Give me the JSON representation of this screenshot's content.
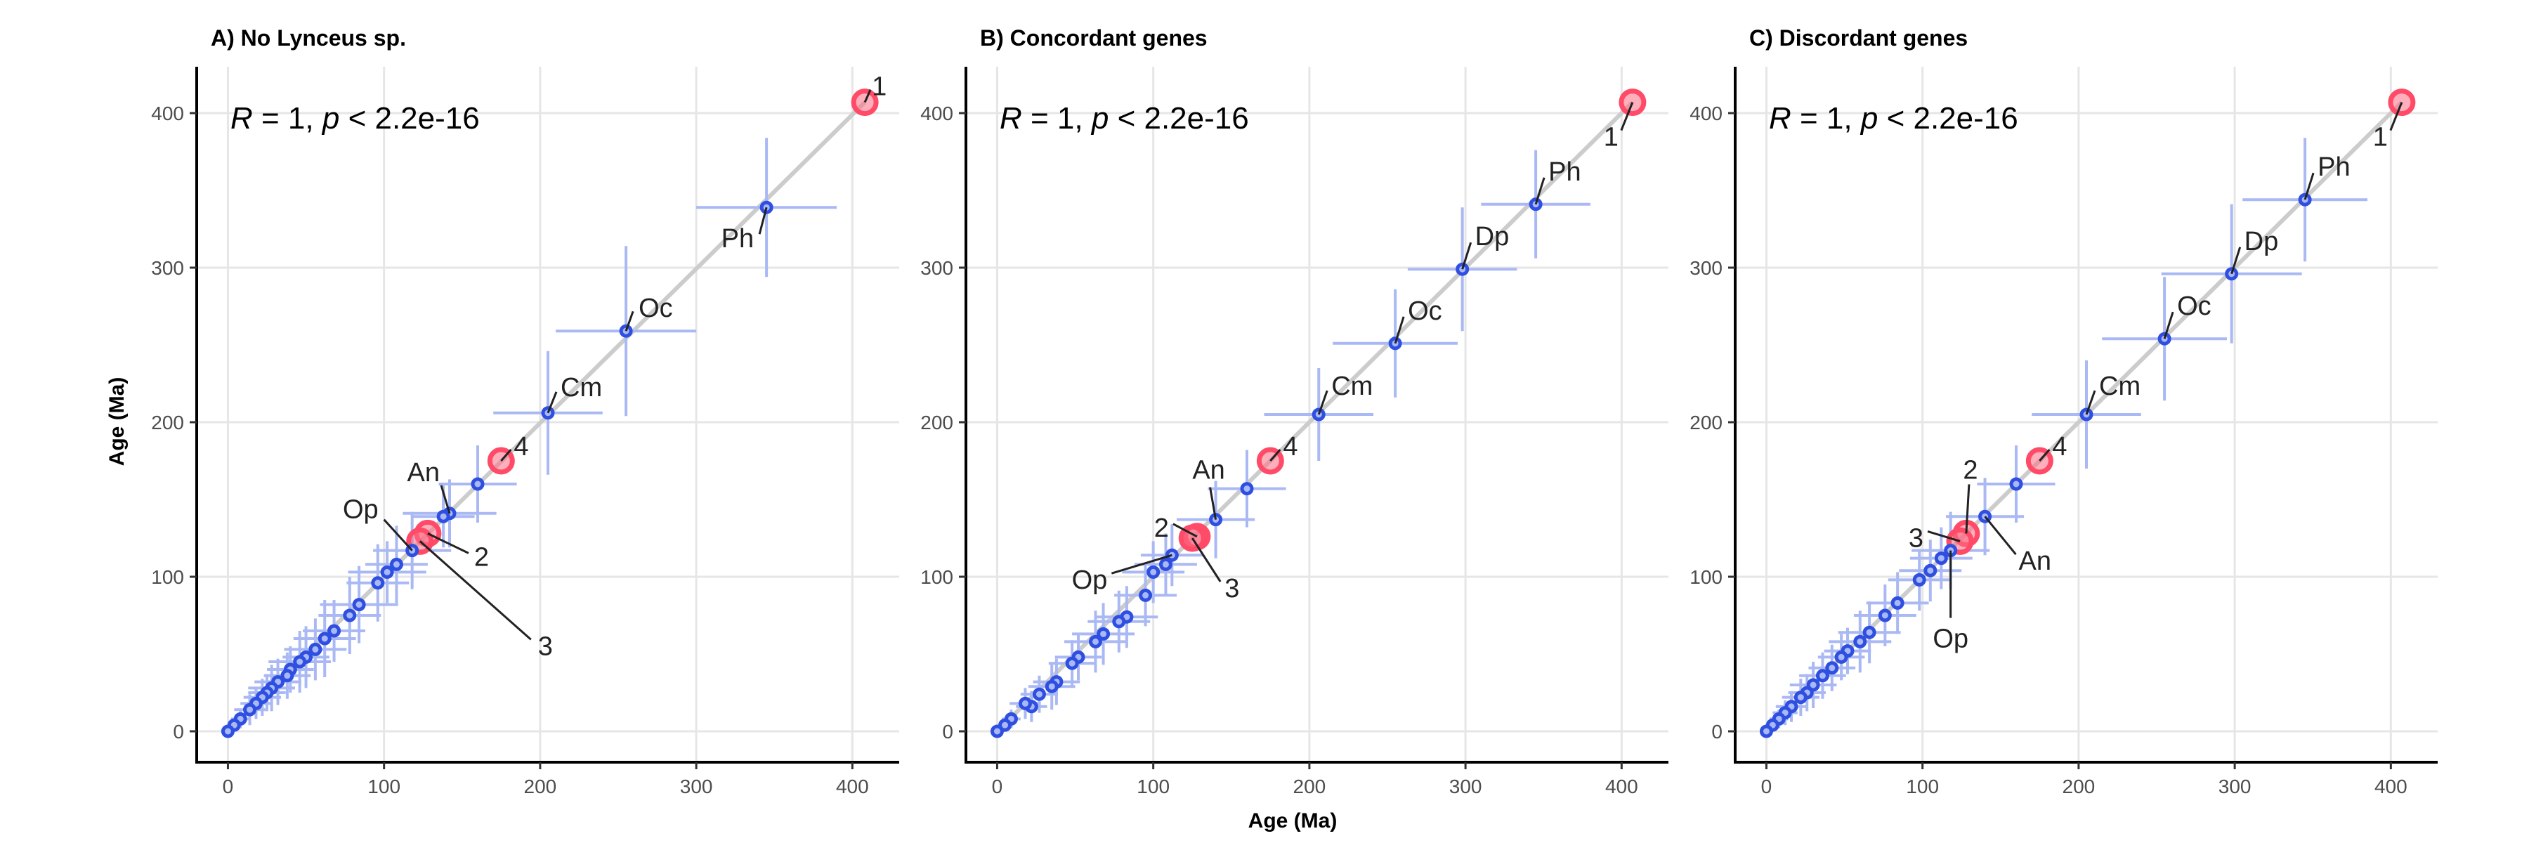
{
  "x_axis_title": "Age (Ma)",
  "y_axis_title": "Age (Ma)",
  "colors": {
    "points_stroke": "#2f4fe0",
    "points_fill": "#a9b8f6",
    "error_bars": "#aab9f4",
    "highlight": "#ff4a68",
    "identity_line": "#cccccc",
    "grid": "#e6e6e6"
  },
  "chart_data": [
    {
      "type": "scatter",
      "title": "A) No Lynceus sp.",
      "stat": {
        "R": "R",
        "R_value": "1",
        "p": "p",
        "p_value": "< 2.2e-16"
      },
      "xlim": [
        -20,
        430
      ],
      "ylim": [
        -20,
        430
      ],
      "xticks": [
        0,
        100,
        200,
        300,
        400
      ],
      "yticks": [
        0,
        100,
        200,
        300,
        400
      ],
      "identity_line": true,
      "grid": true,
      "points": [
        {
          "x": 408,
          "y": 407,
          "xerr": 0,
          "yerr": 0,
          "highlight": true,
          "label": "1"
        },
        {
          "x": 345,
          "y": 339,
          "xerr": 45,
          "yerr": 45,
          "label": "Ph"
        },
        {
          "x": 255,
          "y": 259,
          "xerr": 45,
          "yerr": 55,
          "label": "Oc"
        },
        {
          "x": 205,
          "y": 206,
          "xerr": 35,
          "yerr": 40,
          "label": "Cm"
        },
        {
          "x": 175,
          "y": 175,
          "xerr": 0,
          "yerr": 0,
          "highlight": true,
          "label": "4"
        },
        {
          "x": 160,
          "y": 160,
          "xerr": 25,
          "yerr": 25
        },
        {
          "x": 142,
          "y": 141,
          "xerr": 30,
          "yerr": 22,
          "label": "An"
        },
        {
          "x": 138,
          "y": 139,
          "xerr": 20,
          "yerr": 20
        },
        {
          "x": 128,
          "y": 128,
          "xerr": 0,
          "yerr": 0,
          "highlight": true,
          "label": "2"
        },
        {
          "x": 123,
          "y": 123,
          "xerr": 0,
          "yerr": 0,
          "highlight": true,
          "label": "3"
        },
        {
          "x": 118,
          "y": 117,
          "xerr": 25,
          "yerr": 25,
          "label": "Op"
        },
        {
          "x": 108,
          "y": 108,
          "xerr": 20,
          "yerr": 25
        },
        {
          "x": 102,
          "y": 103,
          "xerr": 25,
          "yerr": 20
        },
        {
          "x": 96,
          "y": 96,
          "xerr": 20,
          "yerr": 25
        },
        {
          "x": 84,
          "y": 82,
          "xerr": 25,
          "yerr": 25
        },
        {
          "x": 78,
          "y": 75,
          "xerr": 20,
          "yerr": 25
        },
        {
          "x": 68,
          "y": 65,
          "xerr": 20,
          "yerr": 20
        },
        {
          "x": 62,
          "y": 60,
          "xerr": 20,
          "yerr": 25
        },
        {
          "x": 56,
          "y": 53,
          "xerr": 20,
          "yerr": 20
        },
        {
          "x": 50,
          "y": 48,
          "xerr": 15,
          "yerr": 20
        },
        {
          "x": 46,
          "y": 45,
          "xerr": 20,
          "yerr": 20
        },
        {
          "x": 40,
          "y": 40,
          "xerr": 15,
          "yerr": 15
        },
        {
          "x": 38,
          "y": 36,
          "xerr": 15,
          "yerr": 15
        },
        {
          "x": 32,
          "y": 32,
          "xerr": 15,
          "yerr": 15
        },
        {
          "x": 28,
          "y": 28,
          "xerr": 15,
          "yerr": 15
        },
        {
          "x": 25,
          "y": 25,
          "xerr": 12,
          "yerr": 12
        },
        {
          "x": 22,
          "y": 22,
          "xerr": 12,
          "yerr": 12
        },
        {
          "x": 18,
          "y": 18,
          "xerr": 10,
          "yerr": 10
        },
        {
          "x": 14,
          "y": 14,
          "xerr": 10,
          "yerr": 10
        },
        {
          "x": 8,
          "y": 8,
          "xerr": 6,
          "yerr": 6
        },
        {
          "x": 4,
          "y": 4,
          "xerr": 4,
          "yerr": 4
        },
        {
          "x": 0,
          "y": 0,
          "xerr": 0,
          "yerr": 0
        }
      ]
    },
    {
      "type": "scatter",
      "title": "B) Concordant genes",
      "stat": {
        "R": "R",
        "R_value": "1",
        "p": "p",
        "p_value": "< 2.2e-16"
      },
      "xlim": [
        -20,
        430
      ],
      "ylim": [
        -20,
        430
      ],
      "xticks": [
        0,
        100,
        200,
        300,
        400
      ],
      "yticks": [
        0,
        100,
        200,
        300,
        400
      ],
      "identity_line": true,
      "grid": true,
      "points": [
        {
          "x": 407,
          "y": 407,
          "xerr": 0,
          "yerr": 0,
          "highlight": true,
          "label": "1"
        },
        {
          "x": 345,
          "y": 341,
          "xerr": 35,
          "yerr": 35,
          "label": "Ph"
        },
        {
          "x": 298,
          "y": 299,
          "xerr": 35,
          "yerr": 40,
          "label": "Dp"
        },
        {
          "x": 255,
          "y": 251,
          "xerr": 40,
          "yerr": 35,
          "label": "Oc"
        },
        {
          "x": 206,
          "y": 205,
          "xerr": 35,
          "yerr": 30,
          "label": "Cm"
        },
        {
          "x": 175,
          "y": 175,
          "xerr": 0,
          "yerr": 0,
          "highlight": true,
          "label": "4"
        },
        {
          "x": 160,
          "y": 157,
          "xerr": 25,
          "yerr": 25
        },
        {
          "x": 140,
          "y": 137,
          "xerr": 25,
          "yerr": 25,
          "label": "An"
        },
        {
          "x": 128,
          "y": 126,
          "xerr": 0,
          "yerr": 0,
          "highlight": true,
          "label": "2"
        },
        {
          "x": 125,
          "y": 125,
          "xerr": 0,
          "yerr": 0,
          "highlight": true,
          "label": "3"
        },
        {
          "x": 112,
          "y": 114,
          "xerr": 20,
          "yerr": 20,
          "label": "Op"
        },
        {
          "x": 108,
          "y": 108,
          "xerr": 20,
          "yerr": 20
        },
        {
          "x": 100,
          "y": 103,
          "xerr": 20,
          "yerr": 20
        },
        {
          "x": 95,
          "y": 88,
          "xerr": 20,
          "yerr": 20
        },
        {
          "x": 83,
          "y": 74,
          "xerr": 20,
          "yerr": 20
        },
        {
          "x": 78,
          "y": 71,
          "xerr": 20,
          "yerr": 20
        },
        {
          "x": 68,
          "y": 63,
          "xerr": 20,
          "yerr": 20
        },
        {
          "x": 63,
          "y": 58,
          "xerr": 20,
          "yerr": 20
        },
        {
          "x": 52,
          "y": 48,
          "xerr": 15,
          "yerr": 15
        },
        {
          "x": 48,
          "y": 44,
          "xerr": 15,
          "yerr": 15
        },
        {
          "x": 38,
          "y": 32,
          "xerr": 15,
          "yerr": 15
        },
        {
          "x": 35,
          "y": 29,
          "xerr": 15,
          "yerr": 15
        },
        {
          "x": 27,
          "y": 24,
          "xerr": 12,
          "yerr": 12
        },
        {
          "x": 22,
          "y": 16,
          "xerr": 10,
          "yerr": 10
        },
        {
          "x": 18,
          "y": 18,
          "xerr": 10,
          "yerr": 10
        },
        {
          "x": 9,
          "y": 8,
          "xerr": 6,
          "yerr": 6
        },
        {
          "x": 5,
          "y": 4,
          "xerr": 4,
          "yerr": 4
        },
        {
          "x": 0,
          "y": 0,
          "xerr": 0,
          "yerr": 0
        }
      ]
    },
    {
      "type": "scatter",
      "title": "C) Discordant genes",
      "stat": {
        "R": "R",
        "R_value": "1",
        "p": "p",
        "p_value": "< 2.2e-16"
      },
      "xlim": [
        -20,
        430
      ],
      "ylim": [
        -20,
        430
      ],
      "xticks": [
        0,
        100,
        200,
        300,
        400
      ],
      "yticks": [
        0,
        100,
        200,
        300,
        400
      ],
      "identity_line": true,
      "grid": true,
      "points": [
        {
          "x": 407,
          "y": 407,
          "xerr": 0,
          "yerr": 0,
          "highlight": true,
          "label": "1"
        },
        {
          "x": 345,
          "y": 344,
          "xerr": 40,
          "yerr": 40,
          "label": "Ph"
        },
        {
          "x": 298,
          "y": 296,
          "xerr": 45,
          "yerr": 45,
          "label": "Dp"
        },
        {
          "x": 255,
          "y": 254,
          "xerr": 40,
          "yerr": 40,
          "label": "Oc"
        },
        {
          "x": 205,
          "y": 205,
          "xerr": 35,
          "yerr": 35,
          "label": "Cm"
        },
        {
          "x": 175,
          "y": 175,
          "xerr": 0,
          "yerr": 0,
          "highlight": true,
          "label": "4"
        },
        {
          "x": 160,
          "y": 160,
          "xerr": 25,
          "yerr": 25
        },
        {
          "x": 140,
          "y": 139,
          "xerr": 25,
          "yerr": 25,
          "label": "An"
        },
        {
          "x": 128,
          "y": 128,
          "xerr": 0,
          "yerr": 0,
          "highlight": true,
          "label": "2"
        },
        {
          "x": 124,
          "y": 123,
          "xerr": 0,
          "yerr": 0,
          "highlight": true,
          "label": "3"
        },
        {
          "x": 118,
          "y": 117,
          "xerr": 25,
          "yerr": 25,
          "label": "Op"
        },
        {
          "x": 112,
          "y": 112,
          "xerr": 20,
          "yerr": 20
        },
        {
          "x": 105,
          "y": 104,
          "xerr": 20,
          "yerr": 20
        },
        {
          "x": 98,
          "y": 98,
          "xerr": 20,
          "yerr": 20
        },
        {
          "x": 84,
          "y": 83,
          "xerr": 20,
          "yerr": 20
        },
        {
          "x": 76,
          "y": 75,
          "xerr": 20,
          "yerr": 20
        },
        {
          "x": 66,
          "y": 64,
          "xerr": 20,
          "yerr": 20
        },
        {
          "x": 60,
          "y": 58,
          "xerr": 20,
          "yerr": 20
        },
        {
          "x": 52,
          "y": 52,
          "xerr": 15,
          "yerr": 15
        },
        {
          "x": 48,
          "y": 48,
          "xerr": 15,
          "yerr": 15
        },
        {
          "x": 42,
          "y": 41,
          "xerr": 15,
          "yerr": 15
        },
        {
          "x": 36,
          "y": 36,
          "xerr": 15,
          "yerr": 15
        },
        {
          "x": 30,
          "y": 30,
          "xerr": 15,
          "yerr": 15
        },
        {
          "x": 26,
          "y": 25,
          "xerr": 12,
          "yerr": 12
        },
        {
          "x": 22,
          "y": 22,
          "xerr": 12,
          "yerr": 12
        },
        {
          "x": 16,
          "y": 16,
          "xerr": 10,
          "yerr": 10
        },
        {
          "x": 12,
          "y": 12,
          "xerr": 8,
          "yerr": 8
        },
        {
          "x": 8,
          "y": 8,
          "xerr": 6,
          "yerr": 6
        },
        {
          "x": 4,
          "y": 4,
          "xerr": 4,
          "yerr": 4
        },
        {
          "x": 0,
          "y": 0,
          "xerr": 0,
          "yerr": 0
        }
      ]
    }
  ]
}
